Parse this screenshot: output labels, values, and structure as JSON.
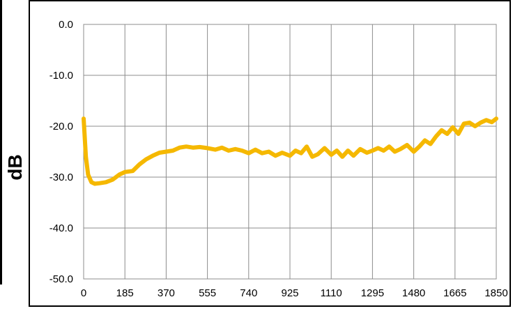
{
  "chart_data": {
    "type": "line",
    "title": "",
    "xlabel": "",
    "ylabel": "dB",
    "xlim": [
      0,
      1850
    ],
    "ylim": [
      -50,
      0
    ],
    "grid": true,
    "xticks": [
      "0",
      "185",
      "370",
      "555",
      "740",
      "925",
      "1110",
      "1295",
      "1480",
      "1665",
      "1850"
    ],
    "yticks": [
      "0.0",
      "-10.0",
      "-20.0",
      "-30.0",
      "-40.0",
      "-50.0"
    ],
    "series": [
      {
        "color": "#F5B800",
        "x": [
          0,
          10,
          20,
          35,
          50,
          70,
          100,
          130,
          160,
          185,
          220,
          250,
          280,
          310,
          340,
          370,
          400,
          430,
          460,
          490,
          520,
          555,
          590,
          620,
          650,
          680,
          710,
          740,
          770,
          800,
          830,
          860,
          890,
          925,
          950,
          975,
          1000,
          1025,
          1050,
          1080,
          1110,
          1135,
          1160,
          1185,
          1210,
          1240,
          1270,
          1295,
          1320,
          1345,
          1370,
          1395,
          1420,
          1450,
          1480,
          1505,
          1530,
          1555,
          1580,
          1605,
          1630,
          1655,
          1680,
          1705,
          1730,
          1755,
          1780,
          1805,
          1830,
          1850
        ],
        "y": [
          -18.5,
          -26,
          -29.5,
          -31,
          -31.3,
          -31.2,
          -31,
          -30.5,
          -29.5,
          -29,
          -28.8,
          -27.5,
          -26.5,
          -25.8,
          -25.2,
          -25,
          -24.8,
          -24.2,
          -24,
          -24.2,
          -24.1,
          -24.3,
          -24.6,
          -24.2,
          -24.8,
          -24.5,
          -24.8,
          -25.3,
          -24.6,
          -25.3,
          -25,
          -25.8,
          -25.2,
          -25.8,
          -24.8,
          -25.3,
          -24,
          -26,
          -25.5,
          -24.3,
          -25.6,
          -24.8,
          -26,
          -24.8,
          -25.8,
          -24.5,
          -25.2,
          -24.8,
          -24.3,
          -24.8,
          -24,
          -25,
          -24.5,
          -23.7,
          -25,
          -24,
          -22.8,
          -23.5,
          -22,
          -20.8,
          -21.5,
          -20.2,
          -21.5,
          -19.5,
          -19.3,
          -20,
          -19.3,
          -18.8,
          -19.2,
          -18.5
        ]
      }
    ]
  }
}
